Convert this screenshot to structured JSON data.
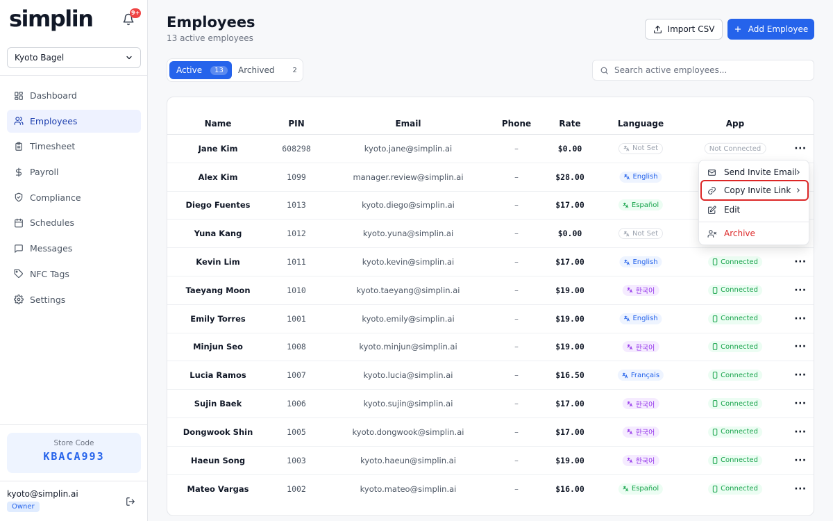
{
  "app": {
    "logo": "simplin",
    "notif_count": "9+"
  },
  "store_select": {
    "value": "Kyoto Bagel"
  },
  "sidebar": {
    "items": [
      {
        "label": "Dashboard",
        "icon": "dashboard-icon"
      },
      {
        "label": "Employees",
        "icon": "users-icon",
        "active": true
      },
      {
        "label": "Timesheet",
        "icon": "clipboard-icon"
      },
      {
        "label": "Payroll",
        "icon": "dollar-icon"
      },
      {
        "label": "Compliance",
        "icon": "shield-icon"
      },
      {
        "label": "Schedules",
        "icon": "calendar-icon"
      },
      {
        "label": "Messages",
        "icon": "message-icon"
      },
      {
        "label": "NFC Tags",
        "icon": "tag-icon"
      },
      {
        "label": "Settings",
        "icon": "gear-icon"
      }
    ],
    "store_code_label": "Store Code",
    "store_code": "KBACA993",
    "user_email": "kyoto@simplin.ai",
    "user_role": "Owner"
  },
  "header": {
    "title": "Employees",
    "subtitle": "13 active employees",
    "import_label": "Import CSV",
    "add_label": "Add Employee"
  },
  "tabs": [
    {
      "label": "Active",
      "count": "13"
    },
    {
      "label": "Archived",
      "count": "2"
    }
  ],
  "search": {
    "placeholder": "Search active employees..."
  },
  "table": {
    "columns": [
      "Name",
      "PIN",
      "Email",
      "Phone",
      "Rate",
      "Language",
      "App"
    ],
    "rows": [
      {
        "name": "Jane Kim",
        "pin": "608298",
        "email": "kyoto.jane@simplin.ai",
        "phone": "–",
        "rate": "$0.00",
        "language": "Not Set",
        "lang_type": "ns",
        "app": "Not Connected",
        "app_type": "nc"
      },
      {
        "name": "Alex Kim",
        "pin": "1099",
        "email": "manager.review@simplin.ai",
        "phone": "–",
        "rate": "$28.00",
        "language": "English",
        "lang_type": "en",
        "app": "",
        "app_type": "none"
      },
      {
        "name": "Diego Fuentes",
        "pin": "1013",
        "email": "kyoto.diego@simplin.ai",
        "phone": "–",
        "rate": "$17.00",
        "language": "Español",
        "lang_type": "es",
        "app": "",
        "app_type": "none"
      },
      {
        "name": "Yuna Kang",
        "pin": "1012",
        "email": "kyoto.yuna@simplin.ai",
        "phone": "–",
        "rate": "$0.00",
        "language": "Not Set",
        "lang_type": "ns",
        "app": "",
        "app_type": "none"
      },
      {
        "name": "Kevin Lim",
        "pin": "1011",
        "email": "kyoto.kevin@simplin.ai",
        "phone": "–",
        "rate": "$17.00",
        "language": "English",
        "lang_type": "en",
        "app": "Connected",
        "app_type": "conn"
      },
      {
        "name": "Taeyang Moon",
        "pin": "1010",
        "email": "kyoto.taeyang@simplin.ai",
        "phone": "–",
        "rate": "$19.00",
        "language": "한국어",
        "lang_type": "ko",
        "app": "Connected",
        "app_type": "conn"
      },
      {
        "name": "Emily Torres",
        "pin": "1001",
        "email": "kyoto.emily@simplin.ai",
        "phone": "–",
        "rate": "$19.00",
        "language": "English",
        "lang_type": "en",
        "app": "Connected",
        "app_type": "conn"
      },
      {
        "name": "Minjun Seo",
        "pin": "1008",
        "email": "kyoto.minjun@simplin.ai",
        "phone": "–",
        "rate": "$19.00",
        "language": "한국어",
        "lang_type": "ko",
        "app": "Connected",
        "app_type": "conn"
      },
      {
        "name": "Lucia Ramos",
        "pin": "1007",
        "email": "kyoto.lucia@simplin.ai",
        "phone": "–",
        "rate": "$16.50",
        "language": "Français",
        "lang_type": "fr",
        "app": "Connected",
        "app_type": "conn"
      },
      {
        "name": "Sujin Baek",
        "pin": "1006",
        "email": "kyoto.sujin@simplin.ai",
        "phone": "–",
        "rate": "$17.00",
        "language": "한국어",
        "lang_type": "ko",
        "app": "Connected",
        "app_type": "conn"
      },
      {
        "name": "Dongwook Shin",
        "pin": "1005",
        "email": "kyoto.dongwook@simplin.ai",
        "phone": "–",
        "rate": "$17.00",
        "language": "한국어",
        "lang_type": "ko",
        "app": "Connected",
        "app_type": "conn"
      },
      {
        "name": "Haeun Song",
        "pin": "1003",
        "email": "kyoto.haeun@simplin.ai",
        "phone": "–",
        "rate": "$19.00",
        "language": "한국어",
        "lang_type": "ko",
        "app": "Connected",
        "app_type": "conn"
      },
      {
        "name": "Mateo Vargas",
        "pin": "1002",
        "email": "kyoto.mateo@simplin.ai",
        "phone": "–",
        "rate": "$16.00",
        "language": "Español",
        "lang_type": "es",
        "app": "Connected",
        "app_type": "conn"
      }
    ]
  },
  "context_menu": {
    "items": [
      {
        "label": "Send Invite Email",
        "icon": "mail-icon"
      },
      {
        "label": "Copy Invite Link",
        "icon": "link-icon",
        "highlighted": true
      },
      {
        "label": "Edit",
        "icon": "edit-icon"
      },
      {
        "label": "Archive",
        "icon": "user-remove-icon",
        "danger": true
      }
    ]
  },
  "colors": {
    "accent": "#2563eb",
    "danger": "#dc2626",
    "success": "#16a34a"
  }
}
